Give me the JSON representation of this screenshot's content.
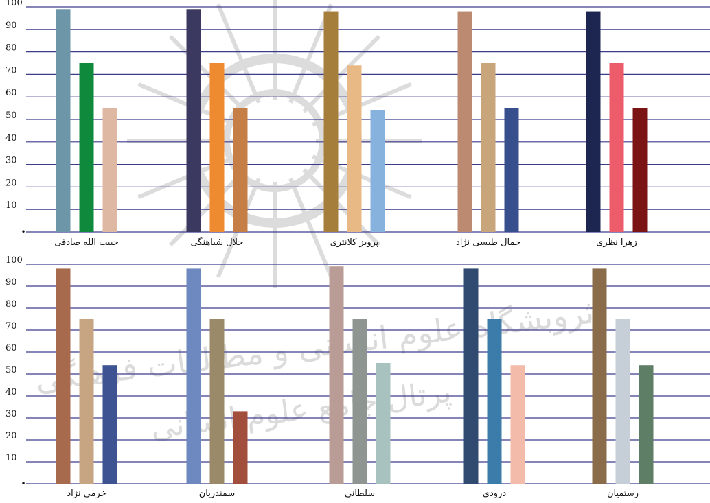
{
  "chart_data": [
    {
      "type": "bar",
      "title": "",
      "xlabel": "",
      "ylabel": "",
      "ylim": [
        0,
        100
      ],
      "yticks": [
        10,
        20,
        30,
        40,
        50,
        60,
        70,
        80,
        90,
        100
      ],
      "ytick_labels": [
        "10",
        "20",
        "30",
        "40",
        "50",
        "60",
        "70",
        "80",
        "90",
        "100"
      ],
      "zero_label": "•",
      "grid": true,
      "categories": [
        "حبیب الله صادقی",
        "جلال شیاهنگی",
        "پرویز کلانتری",
        "جمال طبسی نژاد",
        "زهرا نظری"
      ],
      "series": [
        {
          "values": [
            99,
            99,
            98,
            98,
            98
          ]
        },
        {
          "values": [
            75,
            75,
            74,
            75,
            75
          ]
        },
        {
          "values": [
            55,
            55,
            54,
            55,
            55
          ]
        }
      ],
      "colors": [
        [
          "#6d96a8",
          "#0f8a3c",
          "#dfb8a4"
        ],
        [
          "#3b3960",
          "#ee8a2f",
          "#c57e45"
        ],
        [
          "#a67e3c",
          "#e9b985",
          "#88b2de"
        ],
        [
          "#bc8a70",
          "#c9a57c",
          "#384f8e"
        ],
        [
          "#1c2650",
          "#ec5c6b",
          "#7b1414"
        ]
      ]
    },
    {
      "type": "bar",
      "title": "",
      "xlabel": "",
      "ylabel": "",
      "ylim": [
        0,
        100
      ],
      "yticks": [
        10,
        20,
        30,
        40,
        50,
        60,
        70,
        80,
        90,
        100
      ],
      "ytick_labels": [
        "10",
        "20",
        "30",
        "40",
        "50",
        "60",
        "70",
        "80",
        "90",
        "100"
      ],
      "zero_label": "•",
      "grid": true,
      "categories": [
        "خرمی نژاد",
        "سمندریان",
        "سلطانی",
        "درودی",
        "رستمیان"
      ],
      "series": [
        {
          "values": [
            98,
            98,
            99,
            98,
            98
          ]
        },
        {
          "values": [
            75,
            75,
            75,
            75,
            75
          ]
        },
        {
          "values": [
            54,
            33,
            55,
            54,
            54
          ]
        }
      ],
      "colors": [
        [
          "#a86a4c",
          "#c8a582",
          "#3e5392"
        ],
        [
          "#6e88c0",
          "#9b8a6a",
          "#a24e3c"
        ],
        [
          "#ba9c96",
          "#8f9692",
          "#a8c2c0"
        ],
        [
          "#304a70",
          "#3c7cab",
          "#f3bcaa"
        ],
        [
          "#8a6c4a",
          "#c6cfd8",
          "#5e7f66"
        ]
      ]
    }
  ],
  "watermark": {
    "line1": "ثروبشگاه علوم انسانی و مطالعات فرهنگی",
    "line2": "پرتال جامع علوم انسانی"
  }
}
